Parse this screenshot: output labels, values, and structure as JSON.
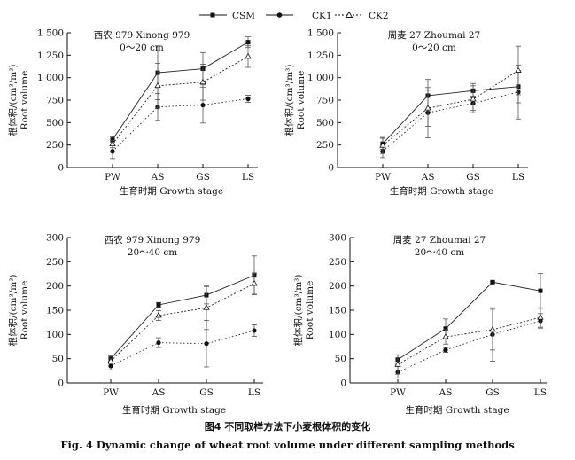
{
  "legend": {
    "csm": "CSM",
    "ck1": "CK1",
    "ck2": "CK2"
  },
  "caption": {
    "cn": "图4   不同取样方法下小麦根体积的变化",
    "en": "Fig. 4    Dynamic change of wheat root volume under different sampling methods"
  },
  "chart_data": [
    {
      "type": "line",
      "title": "西农 979 Xinong 979",
      "subtitle": "0～20 cm",
      "ylabel": "根体积/(cm³/m³)",
      "ylabel2": "Root volume",
      "xlabel": "生育时期 Growth stage",
      "categories": [
        "PW",
        "AS",
        "GS",
        "LS"
      ],
      "ylim": [
        0,
        1500
      ],
      "yticks": [
        0,
        250,
        500,
        750,
        1000,
        1250,
        1500
      ],
      "ytick_labels": [
        "0",
        "250",
        "500",
        "750",
        "1 000",
        "1 250",
        "1 500"
      ],
      "series": [
        {
          "name": "CSM",
          "values": [
            310,
            1055,
            1100,
            1395
          ],
          "errors": [
            30,
            300,
            180,
            60
          ]
        },
        {
          "name": "CK1",
          "values": [
            180,
            675,
            695,
            765
          ],
          "errors": [
            80,
            150,
            200,
            40
          ]
        },
        {
          "name": "CK2",
          "values": [
            260,
            910,
            950,
            1235
          ],
          "errors": [
            40,
            250,
            200,
            120
          ]
        }
      ]
    },
    {
      "type": "line",
      "title": "周麦 27 Zhoumai 27",
      "subtitle": "0～20 cm",
      "ylabel": "根体积/(cm³/m³)",
      "ylabel2": "Root volume",
      "xlabel": "生育时期 Growth stage",
      "categories": [
        "PW",
        "AS",
        "GS",
        "LS"
      ],
      "ylim": [
        0,
        1500
      ],
      "yticks": [
        0,
        250,
        500,
        750,
        1000,
        1250,
        1500
      ],
      "ytick_labels": [
        "0",
        "250",
        "500",
        "750",
        "1 000",
        "1 250",
        "1 500"
      ],
      "series": [
        {
          "name": "CSM",
          "values": [
            265,
            800,
            855,
            900
          ],
          "errors": [
            60,
            180,
            80,
            180
          ]
        },
        {
          "name": "CK1",
          "values": [
            180,
            610,
            715,
            840
          ],
          "errors": [
            70,
            280,
            80,
            300
          ]
        },
        {
          "name": "CK2",
          "values": [
            245,
            660,
            760,
            1080
          ],
          "errors": [
            90,
            200,
            150,
            270
          ]
        }
      ]
    },
    {
      "type": "line",
      "title": "西农 979 Xinong 979",
      "subtitle": "20～40 cm",
      "ylabel": "根体积/(cm³/m³)",
      "ylabel2": "Root volume",
      "xlabel": "生育时期 Growth stage",
      "categories": [
        "PW",
        "AS",
        "GS",
        "LS"
      ],
      "ylim": [
        0,
        300
      ],
      "yticks": [
        0,
        50,
        100,
        150,
        200,
        250,
        300
      ],
      "ytick_labels": [
        "0",
        "50",
        "100",
        "150",
        "200",
        "250",
        "300"
      ],
      "series": [
        {
          "name": "CSM",
          "values": [
            50,
            161,
            181,
            222
          ],
          "errors": [
            6,
            5,
            18,
            40
          ]
        },
        {
          "name": "CK1",
          "values": [
            35,
            83,
            81,
            108
          ],
          "errors": [
            8,
            10,
            48,
            12
          ]
        },
        {
          "name": "CK2",
          "values": [
            45,
            139,
            155,
            205
          ],
          "errors": [
            6,
            10,
            45,
            22
          ]
        }
      ]
    },
    {
      "type": "line",
      "title": "周麦 27 Zhoumai 27",
      "subtitle": "20～40 cm",
      "ylabel": "根体积/(cm³/m³)",
      "ylabel2": "Root volume",
      "xlabel": "生育时期 Growth stage",
      "categories": [
        "PW",
        "AS",
        "GS",
        "LS"
      ],
      "ylim": [
        0,
        300
      ],
      "yticks": [
        0,
        50,
        100,
        150,
        200,
        250,
        300
      ],
      "ytick_labels": [
        "0",
        "50",
        "100",
        "150",
        "200",
        "250",
        "300"
      ],
      "series": [
        {
          "name": "CSM",
          "values": [
            48,
            112,
            208,
            190
          ],
          "errors": [
            10,
            20,
            2,
            36
          ]
        },
        {
          "name": "CK1",
          "values": [
            22,
            68,
            100,
            128
          ],
          "errors": [
            12,
            5,
            55,
            15
          ]
        },
        {
          "name": "CK2",
          "values": [
            38,
            95,
            110,
            135
          ],
          "errors": [
            20,
            15,
            42,
            20
          ]
        }
      ]
    }
  ]
}
